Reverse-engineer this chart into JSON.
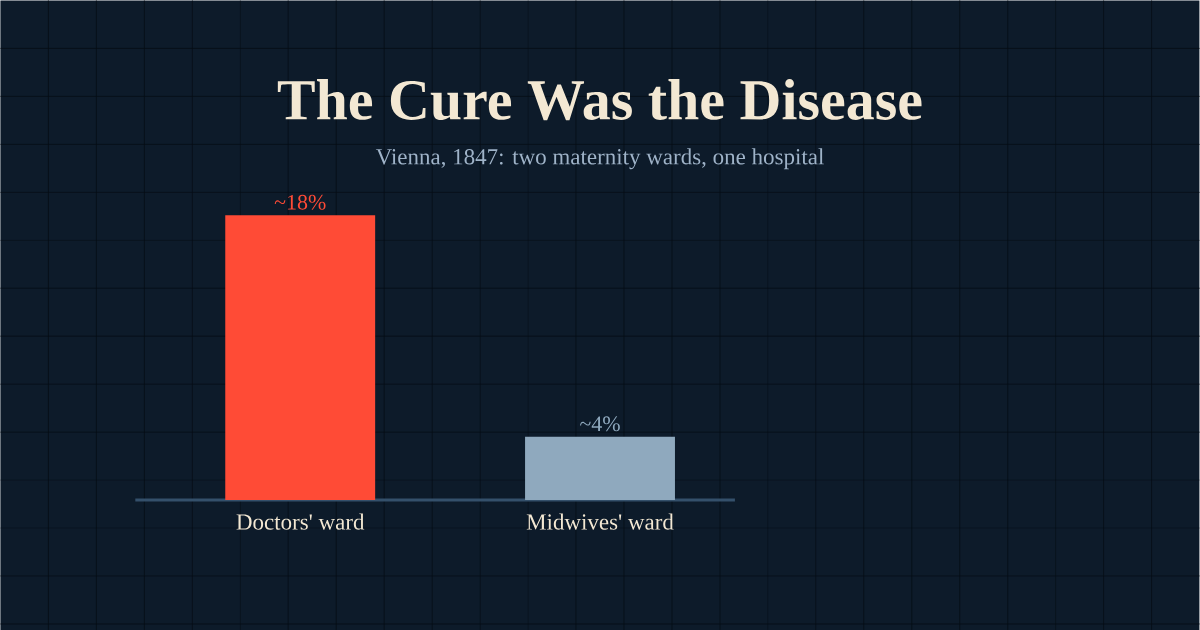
{
  "chart_data": {
    "type": "bar",
    "title": "The Cure Was the Disease",
    "subtitle": "Vienna, 1847: two maternity wards, one hospital",
    "categories": [
      "Doctors' ward",
      "Midwives' ward"
    ],
    "values": [
      18,
      4
    ],
    "colors": [
      "#ff4b36",
      "#8fa9be"
    ],
    "value_labels": [
      "~18%",
      "~4%"
    ]
  }
}
